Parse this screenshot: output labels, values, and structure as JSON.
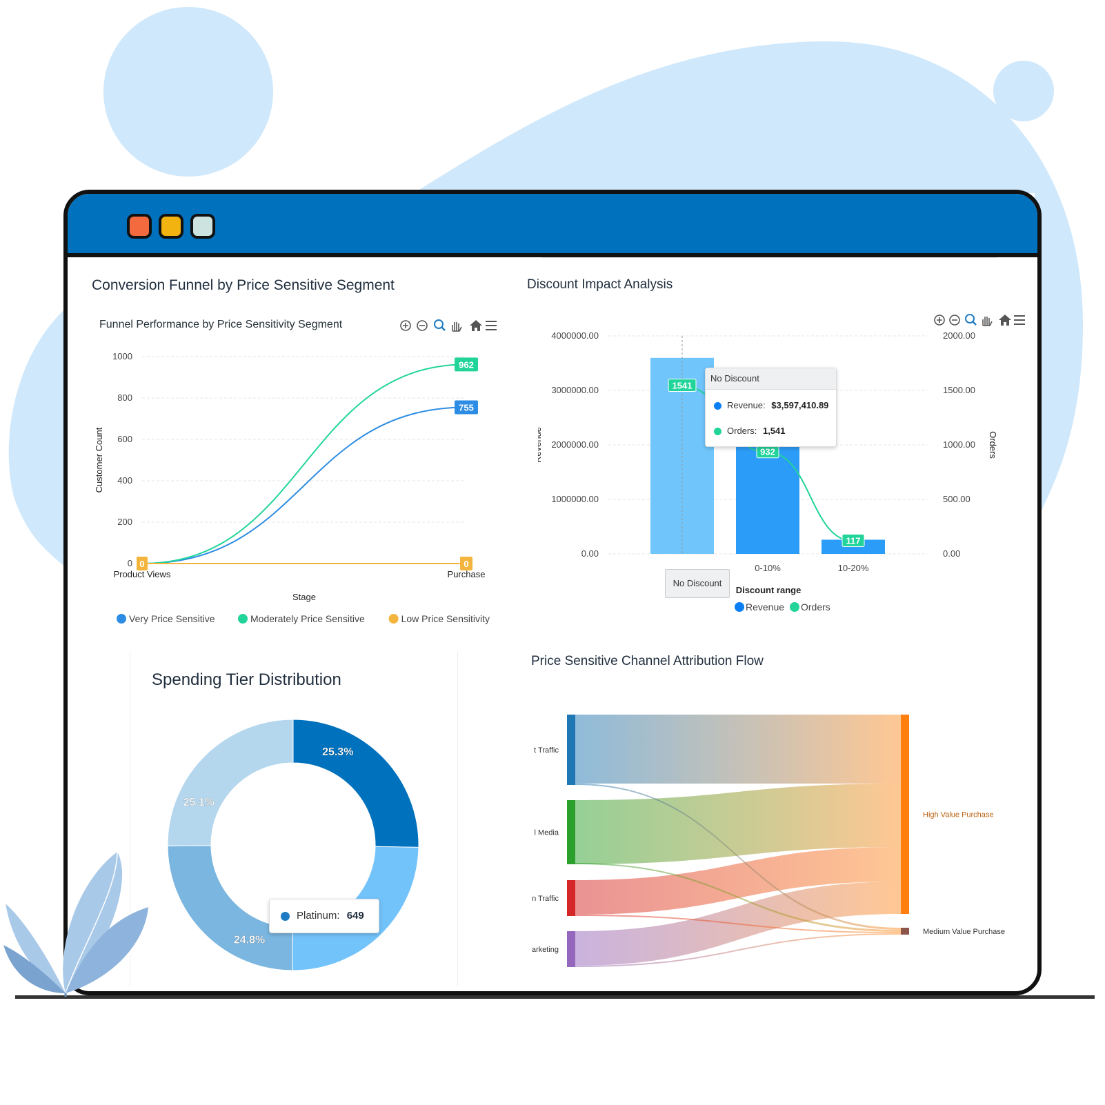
{
  "funnel": {
    "card_title": "Conversion Funnel by Price Sensitive Segment",
    "chart_title": "Funnel Performance by Price Sensitivity Segment",
    "chart_data": {
      "type": "line",
      "categories": [
        "Product Views",
        "Purchase"
      ],
      "xlabel": "Stage",
      "ylabel": "Customer Count",
      "ylim": [
        0,
        1000
      ],
      "yticks": [
        "0",
        "200",
        "400",
        "600",
        "800",
        "1000"
      ],
      "series": [
        {
          "name": "Very Price Sensitive",
          "values": [
            0,
            755
          ],
          "color": "#2d8ce3",
          "end_label": "755"
        },
        {
          "name": "Moderately Price Sensitive",
          "values": [
            0,
            962
          ],
          "color": "#21d49a",
          "end_label": "962"
        },
        {
          "name": "Low Price Sensitivity",
          "values": [
            0,
            0
          ],
          "color": "#f4b53f",
          "start_label": "0",
          "end_label": "0"
        }
      ],
      "grid": true,
      "legend": "bottom"
    }
  },
  "discount": {
    "card_title": "Discount Impact Analysis",
    "chart_data": {
      "type": "bar",
      "categories": [
        "No Discount",
        "0-10%",
        "10-20%"
      ],
      "xlabel": "Discount range",
      "ylabel": "Revenue",
      "y2label": "Orders",
      "ylim": [
        0,
        4000000
      ],
      "y2lim": [
        0,
        2000
      ],
      "yticks": [
        "0.00",
        "1000000.00",
        "2000000.00",
        "3000000.00",
        "4000000.00"
      ],
      "y2ticks": [
        "0.00",
        "500.00",
        "1000.00",
        "1500.00",
        "2000.00"
      ],
      "series": [
        {
          "name": "Revenue",
          "type": "bar",
          "values": [
            3597410.89,
            2025000,
            260000
          ],
          "color": "#2b9cf7"
        },
        {
          "name": "Orders",
          "type": "line",
          "values": [
            1541,
            932,
            117
          ],
          "color": "#21d49a",
          "labels": [
            "1541",
            "932",
            "117"
          ]
        }
      ],
      "grid": true,
      "legend": "bottom"
    },
    "tooltip": {
      "title": "No Discount",
      "revenue_label": "Revenue:",
      "revenue_value": "$3,597,410.89",
      "orders_label": "Orders:",
      "orders_value": "1,541"
    },
    "xhover": "No Discount"
  },
  "spending": {
    "card_title": "Spending Tier Distribution",
    "chart_data": {
      "type": "pie",
      "slices": [
        {
          "label": "25.3%",
          "value": 25.3,
          "color": "#0071bc"
        },
        {
          "label": "",
          "value": 24.8,
          "color": "#73c3fb"
        },
        {
          "label": "24.8%",
          "value": 24.8,
          "color": "#7ab6e0"
        },
        {
          "label": "25.1%",
          "value": 25.1,
          "color": "#b5d7ee"
        }
      ]
    },
    "tooltip": {
      "name": "Platinum:",
      "value": "649",
      "color": "#1f7cc4"
    }
  },
  "channel": {
    "card_title": "Price Sensitive Channel Attribution Flow",
    "sources": [
      {
        "label": "t Traffic",
        "color": "#1f77b4"
      },
      {
        "label": "l Media",
        "color": "#2ca02c"
      },
      {
        "label": "n Traffic",
        "color": "#d62728"
      },
      {
        "label": "arketing",
        "color": "#9467bd"
      }
    ],
    "targets": [
      {
        "label": "High Value Purchase",
        "color": "#ff7f0e"
      },
      {
        "label": "Medium Value Purchase",
        "color": "#8c564b"
      }
    ]
  }
}
